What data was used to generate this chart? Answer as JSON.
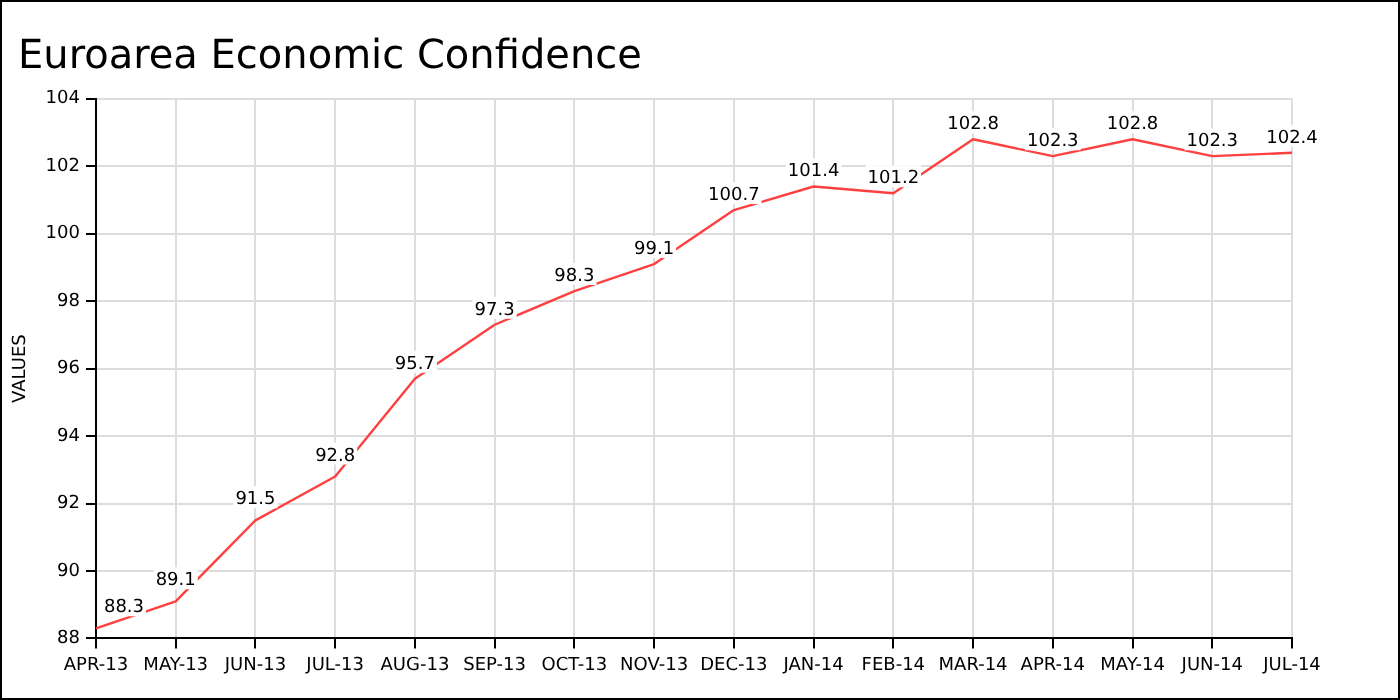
{
  "chart_data": {
    "type": "line",
    "title": "Euroarea Economic Confidence",
    "ylabel": "VALUES",
    "categories": [
      "APR-13",
      "MAY-13",
      "JUN-13",
      "JUL-13",
      "AUG-13",
      "SEP-13",
      "OCT-13",
      "NOV-13",
      "DEC-13",
      "JAN-14",
      "FEB-14",
      "MAR-14",
      "APR-14",
      "MAY-14",
      "JUN-14",
      "JUL-14"
    ],
    "series": [
      {
        "color": "#ff4040",
        "values": [
          88.3,
          89.1,
          91.5,
          92.8,
          95.7,
          97.3,
          98.3,
          99.1,
          100.7,
          101.4,
          101.2,
          102.8,
          102.3,
          102.8,
          102.3,
          102.4
        ]
      }
    ],
    "ylim": [
      88,
      104
    ],
    "yticks": [
      88,
      90,
      92,
      94,
      96,
      98,
      100,
      102,
      104
    ],
    "grid": true,
    "legend": false,
    "marker": "none",
    "line_style": "solid",
    "data_labels": true
  }
}
